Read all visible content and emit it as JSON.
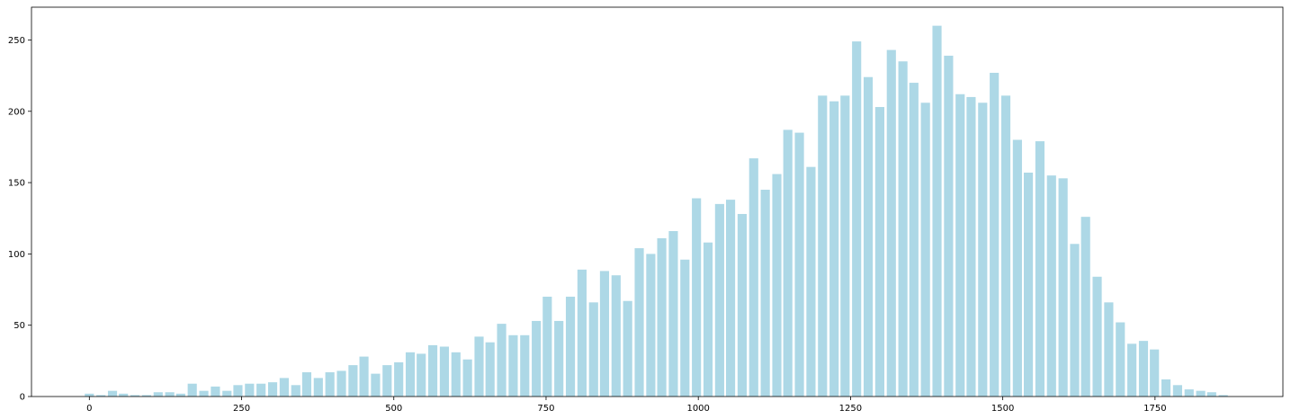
{
  "chart_data": {
    "type": "bar",
    "title": "",
    "xlabel": "",
    "ylabel": "",
    "bar_color": "#add8e6",
    "xlim": [
      -95,
      1960
    ],
    "ylim": [
      0,
      273
    ],
    "xticks": [
      0,
      250,
      500,
      750,
      1000,
      1250,
      1500,
      1750
    ],
    "yticks": [
      0,
      50,
      100,
      150,
      200,
      250
    ],
    "bar_width": 15,
    "x": [
      0,
      19,
      38,
      56,
      75,
      94,
      113,
      132,
      150,
      169,
      188,
      207,
      226,
      244,
      263,
      282,
      301,
      320,
      339,
      357,
      376,
      395,
      414,
      433,
      451,
      470,
      489,
      508,
      527,
      545,
      564,
      583,
      602,
      621,
      640,
      658,
      677,
      696,
      715,
      734,
      752,
      771,
      790,
      809,
      828,
      846,
      865,
      884,
      903,
      922,
      940,
      959,
      978,
      997,
      1016,
      1035,
      1053,
      1072,
      1091,
      1110,
      1129,
      1147,
      1166,
      1185,
      1204,
      1223,
      1241,
      1260,
      1279,
      1298,
      1317,
      1336,
      1354,
      1373,
      1392,
      1411,
      1430,
      1448,
      1467,
      1486,
      1505,
      1524,
      1542,
      1561,
      1580,
      1599,
      1618,
      1636,
      1655,
      1674,
      1693,
      1712,
      1731,
      1749,
      1768,
      1787,
      1806,
      1825,
      1843,
      1862
    ],
    "values": [
      2,
      1,
      4,
      2,
      1,
      1,
      3,
      3,
      2,
      9,
      4,
      7,
      4,
      8,
      9,
      9,
      10,
      13,
      8,
      17,
      13,
      17,
      18,
      22,
      28,
      16,
      22,
      24,
      31,
      30,
      36,
      35,
      31,
      26,
      42,
      38,
      51,
      43,
      43,
      53,
      70,
      53,
      70,
      89,
      66,
      88,
      85,
      67,
      104,
      100,
      111,
      116,
      96,
      139,
      108,
      135,
      138,
      128,
      167,
      145,
      156,
      187,
      185,
      161,
      211,
      207,
      211,
      249,
      224,
      203,
      243,
      235,
      220,
      206,
      260,
      239,
      212,
      210,
      206,
      227,
      211,
      180,
      157,
      179,
      155,
      153,
      107,
      126,
      84,
      66,
      52,
      37,
      39,
      33,
      12,
      8,
      5,
      4,
      3,
      1
    ]
  }
}
